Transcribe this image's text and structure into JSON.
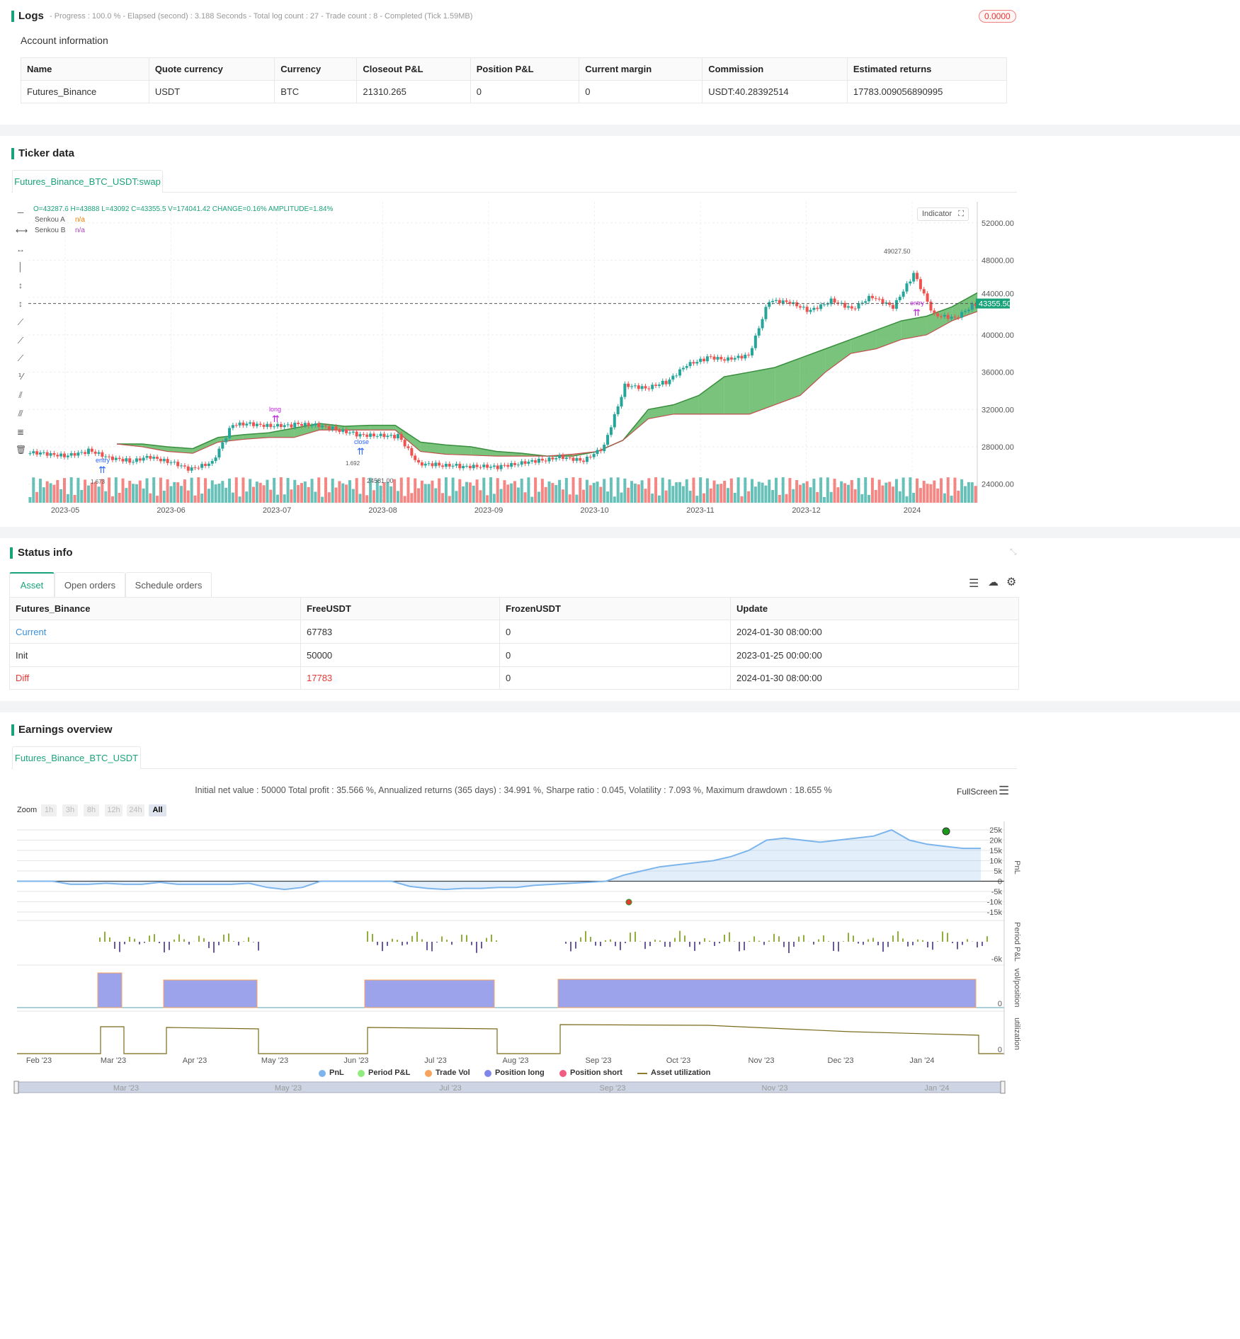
{
  "logs": {
    "title": "Logs",
    "summary": "- Progress : 100.0 % - Elapsed (second) : 3.188  Seconds - Total log count : 27 - Trade count : 8 - Completed (Tick 1.59MB)",
    "badge": "0.0000"
  },
  "account": {
    "title": "Account information",
    "headers": [
      "Name",
      "Quote currency",
      "Currency",
      "Closeout P&L",
      "Position P&L",
      "Current margin",
      "Commission",
      "Estimated returns"
    ],
    "row": [
      "Futures_Binance",
      "USDT",
      "BTC",
      "21310.265",
      "0",
      "0",
      "USDT:40.28392514",
      "17783.009056890995"
    ]
  },
  "ticker": {
    "title": "Ticker data",
    "tab": "Futures_Binance_BTC_USDT:swap",
    "ohlc": "O=43287.6 H=43888 L=43092 C=43355.5 V=174041.42 CHANGE=0.16% AMPLITUDE=1.84%",
    "senkou_a": "Senkou A",
    "senkou_a_val": "n/a",
    "senkou_b": "Senkou B",
    "senkou_b_val": "n/a",
    "indicator": "Indicator",
    "last_price": "43355.50",
    "high_label": "49027.50",
    "low_label": "24581.00"
  },
  "chart_data": [
    {
      "type": "candlestick",
      "x_ticks": [
        "2023-05",
        "2023-06",
        "2023-07",
        "2023-08",
        "2023-09",
        "2023-10",
        "2023-11",
        "2023-12",
        "2024"
      ],
      "y_ticks": [
        "24000.00",
        "28000.00",
        "32000.00",
        "36000.00",
        "40000.00",
        "44000.00",
        "48000.00",
        "52000.00"
      ],
      "ylim": [
        22000,
        53500
      ],
      "closes": [
        27300,
        27000,
        27500,
        26800,
        26500,
        27000,
        26300,
        25500,
        26300,
        30500,
        30500,
        30200,
        30300,
        30300,
        29900,
        29400,
        29200,
        29100,
        26100,
        26100,
        26000,
        25900,
        25800,
        26200,
        26600,
        27000,
        26500,
        28000,
        34500,
        34300,
        35000,
        36800,
        37500,
        37300,
        37800,
        43800,
        43500,
        42500,
        43600,
        42800,
        44200,
        43000,
        46500,
        42000,
        41800,
        43355
      ],
      "senkou_a": [
        28300,
        28300,
        28000,
        27800,
        29000,
        29300,
        29500,
        30000,
        30500,
        30200,
        30300,
        30300,
        28500,
        28200,
        28000,
        27500,
        27300,
        27000,
        27000,
        27500,
        28700,
        32000,
        32500,
        33500,
        35500,
        36000,
        36500,
        37500,
        38500,
        39500,
        40500,
        41500,
        42000,
        43000,
        44500
      ],
      "senkou_b": [
        28300,
        28000,
        27500,
        27300,
        28500,
        28800,
        29000,
        29000,
        29800,
        29800,
        29800,
        29800,
        27500,
        27200,
        27100,
        27000,
        27000,
        27000,
        27200,
        27500,
        28700,
        31000,
        31500,
        31500,
        31500,
        31500,
        32500,
        33500,
        36000,
        38000,
        38500,
        39500,
        40000,
        41500,
        42500
      ],
      "markers": [
        "entry",
        "long",
        "close",
        "entry",
        "entry",
        "entry",
        "close",
        "entry",
        "short"
      ],
      "marker_values": [
        "1.673",
        "1.692"
      ]
    },
    {
      "type": "line",
      "title": "",
      "series": [
        {
          "name": "PnL",
          "values": [
            0,
            0,
            0,
            -1500,
            -1500,
            -1000,
            -1500,
            -1500,
            -500,
            -1500,
            -1500,
            -1500,
            -1500,
            -1000,
            -3000,
            -4000,
            -3000,
            0,
            0,
            0,
            0,
            0,
            -2500,
            -3500,
            -4000,
            -3500,
            -3500,
            -3000,
            -3000,
            -2000,
            -1500,
            -1000,
            -500,
            0,
            3000,
            5000,
            7000,
            8000,
            9000,
            10000,
            12000,
            15000,
            20000,
            21000,
            20000,
            19000,
            20000,
            21000,
            22000,
            25000,
            20000,
            18000,
            17000,
            16000,
            16000
          ]
        },
        {
          "name": "Period P&L"
        },
        {
          "name": "Trade Vol"
        },
        {
          "name": "Position long"
        },
        {
          "name": "Position short"
        },
        {
          "name": "Asset utilization"
        }
      ],
      "y_ticks": [
        "25k",
        "20k",
        "15k",
        "10k",
        "5k",
        "0",
        "-5k",
        "-10k",
        "-15k"
      ],
      "period_tick": "-6k",
      "pos_tick": "0",
      "util_tick": "0",
      "axis_titles": [
        "PnL",
        "Period P&L",
        "vol/position",
        "utilization"
      ],
      "x_ticks": [
        "Feb '23",
        "Mar '23",
        "Apr '23",
        "May '23",
        "Jun '23",
        "Jul '23",
        "Aug '23",
        "Sep '23",
        "Oct '23",
        "Nov '23",
        "Dec '23",
        "Jan '24"
      ],
      "nav_ticks": [
        "Mar '23",
        "May '23",
        "Jul '23",
        "Sep '23",
        "Nov '23",
        "Jan '24"
      ]
    }
  ],
  "status": {
    "title": "Status info",
    "tabs": [
      "Asset",
      "Open orders",
      "Schedule orders"
    ],
    "headers": [
      "Futures_Binance",
      "FreeUSDT",
      "FrozenUSDT",
      "Update"
    ],
    "rows": [
      [
        "Current",
        "67783",
        "0",
        "2024-01-30 08:00:00"
      ],
      [
        "Init",
        "50000",
        "0",
        "2023-01-25 00:00:00"
      ],
      [
        "Diff",
        "17783",
        "0",
        "2024-01-30 08:00:00"
      ]
    ]
  },
  "earnings": {
    "title": "Earnings overview",
    "tab": "Futures_Binance_BTC_USDT",
    "stats": "Initial net value : 50000 Total profit : 35.566 %, Annualized returns (365 days) : 34.991 %, Sharpe ratio : 0.045, Volatility : 7.093 %, Maximum drawdown : 18.655 %",
    "fullscreen": "FullScreen",
    "zoom_label": "Zoom",
    "zoom_buttons": [
      "1h",
      "3h",
      "8h",
      "12h",
      "24h",
      "All"
    ]
  },
  "colors": {
    "accent": "#1aa37a",
    "up": "#26a69a",
    "down": "#ef5350",
    "cloud_up": "#4caf50",
    "cloud_down": "#e57373",
    "pnl": "#7cb5ec",
    "position": "#9da3ea"
  }
}
